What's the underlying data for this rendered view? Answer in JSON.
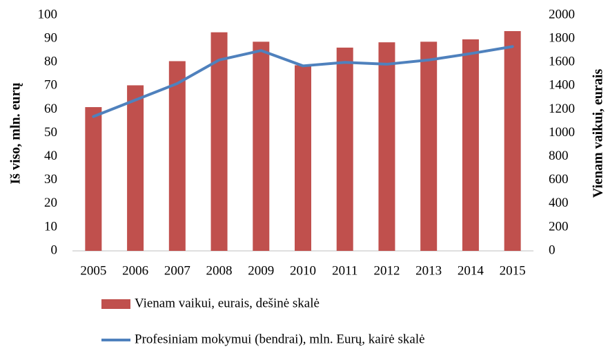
{
  "chart_data": {
    "type": "bar-line",
    "categories": [
      "2005",
      "2006",
      "2007",
      "2008",
      "2009",
      "2010",
      "2011",
      "2012",
      "2013",
      "2014",
      "2015"
    ],
    "ylabel": "Iš viso, mln. eurų",
    "y2label": "Vienam vaikui, eurais",
    "ylim": [
      0,
      100
    ],
    "yticks": [
      0,
      10,
      20,
      30,
      40,
      50,
      60,
      70,
      80,
      90,
      100
    ],
    "y2lim": [
      0,
      2000
    ],
    "y2ticks": [
      0,
      200,
      400,
      600,
      800,
      1000,
      1200,
      1400,
      1600,
      1800,
      2000
    ],
    "series": [
      {
        "name": "Vienam vaikui, eurais, dešinė skalė",
        "type": "bar",
        "axis": "y2",
        "color": "#c0504d",
        "values": [
          1220,
          1405,
          1610,
          1855,
          1775,
          1575,
          1725,
          1770,
          1775,
          1795,
          1865
        ]
      },
      {
        "name": "Profesiniam mokymui (bendrai), mln. Eurų, kairė skalė",
        "type": "line",
        "axis": "y",
        "color": "#4f81bd",
        "values": [
          57,
          64,
          71,
          81,
          85,
          78.5,
          80,
          79.2,
          81,
          83.7,
          86.7
        ]
      }
    ]
  }
}
